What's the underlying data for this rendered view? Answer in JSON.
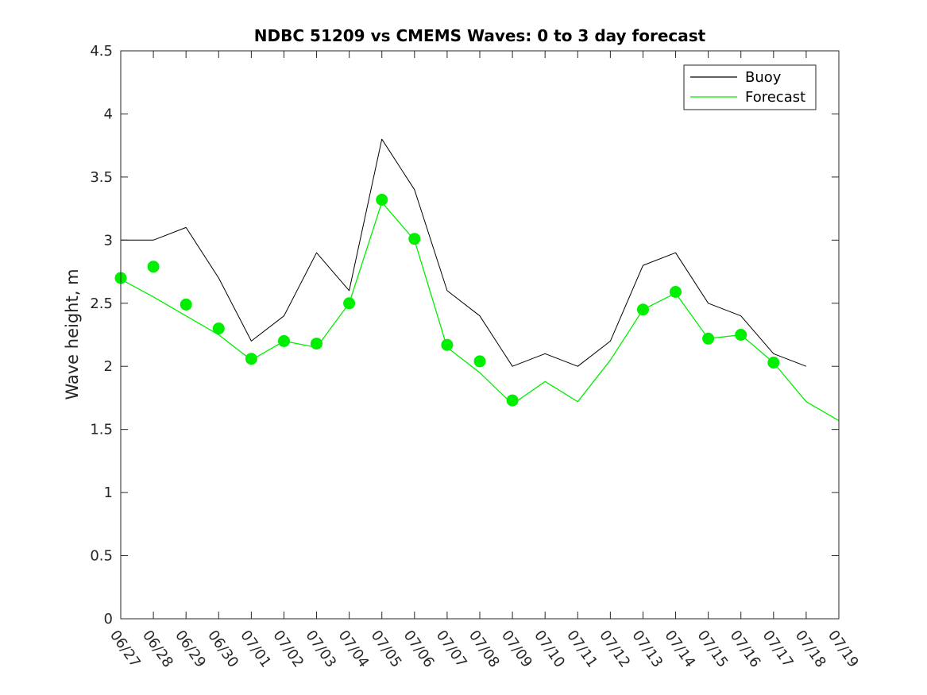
{
  "chart_data": {
    "type": "line",
    "title": "NDBC 51209 vs CMEMS Waves: 0 to 3 day forecast",
    "xlabel": "",
    "ylabel": "Wave height, m",
    "ylim": [
      0,
      4.5
    ],
    "yticks": [
      0,
      0.5,
      1,
      1.5,
      2,
      2.5,
      3,
      3.5,
      4,
      4.5
    ],
    "ytick_labels": [
      "0",
      "0.5",
      "1",
      "1.5",
      "2",
      "2.5",
      "3",
      "3.5",
      "4",
      "4.5"
    ],
    "xlim": [
      "06/27",
      "07/19"
    ],
    "xtick_labels": [
      "06/27",
      "06/28",
      "06/29",
      "06/30",
      "07/01",
      "07/02",
      "07/03",
      "07/04",
      "07/05",
      "07/06",
      "07/07",
      "07/08",
      "07/09",
      "07/10",
      "07/11",
      "07/12",
      "07/13",
      "07/14",
      "07/15",
      "07/16",
      "07/17",
      "07/18",
      "07/19"
    ],
    "grid": false,
    "legend_position": "top-right",
    "legend": [
      {
        "label": "Buoy",
        "color": "#000000"
      },
      {
        "label": "Forecast",
        "color": "#00ee00"
      }
    ],
    "series": [
      {
        "name": "Buoy",
        "color": "#000000",
        "x": [
          "06/27",
          "06/28",
          "06/29",
          "06/30",
          "07/01",
          "07/02",
          "07/03",
          "07/04",
          "07/05",
          "07/06",
          "07/07",
          "07/08",
          "07/09",
          "07/10",
          "07/11",
          "07/12",
          "07/13",
          "07/14",
          "07/15",
          "07/16",
          "07/17",
          "07/18"
        ],
        "y": [
          3.0,
          3.0,
          3.1,
          2.7,
          2.2,
          2.4,
          2.9,
          2.6,
          3.8,
          3.4,
          2.6,
          2.4,
          2.0,
          2.1,
          2.0,
          2.2,
          2.8,
          2.9,
          2.5,
          2.4,
          2.1,
          2.0
        ]
      },
      {
        "name": "Forecast",
        "color": "#00ee00",
        "x": [
          "06/27",
          "06/28",
          "06/29",
          "06/30",
          "07/01",
          "07/02",
          "07/03",
          "07/04",
          "07/05",
          "07/06",
          "07/07",
          "07/08",
          "07/09",
          "07/10",
          "07/11",
          "07/12",
          "07/13",
          "07/14",
          "07/15",
          "07/16",
          "07/17",
          "07/18",
          "07/19"
        ],
        "y": [
          2.69,
          2.55,
          2.4,
          2.25,
          2.05,
          2.2,
          2.15,
          2.5,
          3.3,
          3.0,
          2.15,
          1.95,
          1.7,
          1.88,
          1.72,
          2.05,
          2.45,
          2.58,
          2.22,
          2.25,
          2.03,
          1.72,
          1.57
        ]
      }
    ],
    "forecast_initial_points": {
      "x": [
        "06/27",
        "06/28",
        "06/29",
        "06/30",
        "07/01",
        "07/02",
        "07/03",
        "07/04",
        "07/05",
        "07/06",
        "07/07",
        "07/08",
        "07/09",
        "07/13",
        "07/14",
        "07/15",
        "07/16",
        "07/17"
      ],
      "y": [
        2.7,
        2.79,
        2.49,
        2.3,
        2.06,
        2.2,
        2.18,
        2.5,
        3.32,
        3.01,
        2.17,
        2.04,
        1.73,
        2.45,
        2.59,
        2.22,
        2.25,
        2.03
      ]
    }
  }
}
